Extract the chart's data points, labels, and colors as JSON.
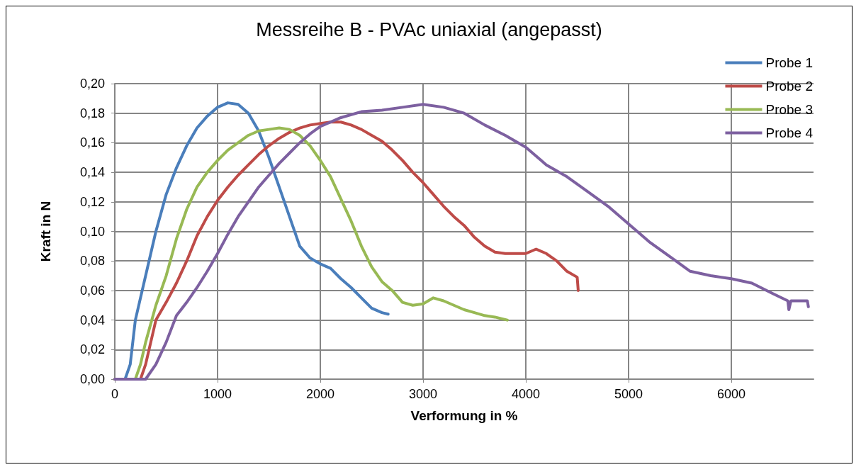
{
  "chart_data": {
    "type": "line",
    "title": "Messreihe B - PVAc uniaxial (angepasst)",
    "xlabel": "Verformung in %",
    "ylabel": "Kraft in N",
    "xlim": [
      0,
      6800
    ],
    "xticks": [
      0,
      1000,
      2000,
      3000,
      4000,
      5000,
      6000
    ],
    "ylim": [
      0,
      0.2
    ],
    "yticks": [
      {
        "value": 0,
        "label": "0,00"
      },
      {
        "value": 0.02,
        "label": "0,02"
      },
      {
        "value": 0.04,
        "label": "0,04"
      },
      {
        "value": 0.06,
        "label": "0,06"
      },
      {
        "value": 0.08,
        "label": "0,08"
      },
      {
        "value": 0.1,
        "label": "0,10"
      },
      {
        "value": 0.12,
        "label": "0,12"
      },
      {
        "value": 0.14,
        "label": "0,14"
      },
      {
        "value": 0.16,
        "label": "0,16"
      },
      {
        "value": 0.18,
        "label": "0,18"
      },
      {
        "value": 0.2,
        "label": "0,20"
      }
    ],
    "grid": true,
    "legend": "top right",
    "marker": "none",
    "line_style": "solid",
    "series": [
      {
        "name": "Probe 1",
        "color": "#4a7ebb",
        "x": [
          0,
          100,
          150,
          200,
          300,
          400,
          500,
          600,
          700,
          800,
          900,
          1000,
          1100,
          1200,
          1300,
          1400,
          1500,
          1600,
          1700,
          1800,
          1900,
          2000,
          2100,
          2200,
          2300,
          2400,
          2500,
          2600,
          2660
        ],
        "values": [
          0,
          0,
          0.01,
          0.04,
          0.07,
          0.1,
          0.125,
          0.143,
          0.158,
          0.17,
          0.178,
          0.184,
          0.187,
          0.186,
          0.18,
          0.168,
          0.15,
          0.13,
          0.11,
          0.09,
          0.082,
          0.078,
          0.075,
          0.068,
          0.062,
          0.055,
          0.048,
          0.045,
          0.044
        ]
      },
      {
        "name": "Probe 2",
        "color": "#be4b48",
        "x": [
          0,
          250,
          300,
          350,
          400,
          500,
          600,
          700,
          800,
          900,
          1000,
          1100,
          1200,
          1300,
          1400,
          1500,
          1600,
          1700,
          1800,
          1900,
          2000,
          2100,
          2200,
          2300,
          2400,
          2500,
          2600,
          2700,
          2800,
          2900,
          3000,
          3100,
          3200,
          3300,
          3400,
          3500,
          3600,
          3700,
          3800,
          3900,
          4000,
          4100,
          4200,
          4300,
          4400,
          4500,
          4510
        ],
        "values": [
          0,
          0,
          0.01,
          0.025,
          0.04,
          0.052,
          0.065,
          0.08,
          0.097,
          0.11,
          0.121,
          0.13,
          0.138,
          0.145,
          0.152,
          0.158,
          0.163,
          0.167,
          0.17,
          0.172,
          0.173,
          0.174,
          0.174,
          0.172,
          0.169,
          0.165,
          0.161,
          0.155,
          0.148,
          0.14,
          0.133,
          0.125,
          0.117,
          0.11,
          0.104,
          0.096,
          0.09,
          0.086,
          0.085,
          0.085,
          0.085,
          0.088,
          0.085,
          0.08,
          0.073,
          0.069,
          0.06
        ]
      },
      {
        "name": "Probe 3",
        "color": "#98b954",
        "x": [
          0,
          200,
          250,
          300,
          400,
          500,
          600,
          700,
          800,
          900,
          1000,
          1100,
          1200,
          1300,
          1400,
          1500,
          1600,
          1700,
          1800,
          1900,
          2000,
          2100,
          2200,
          2300,
          2400,
          2500,
          2600,
          2700,
          2800,
          2900,
          3000,
          3100,
          3200,
          3300,
          3400,
          3500,
          3600,
          3700,
          3820
        ],
        "values": [
          0,
          0,
          0.01,
          0.025,
          0.05,
          0.07,
          0.095,
          0.115,
          0.13,
          0.14,
          0.148,
          0.155,
          0.16,
          0.165,
          0.168,
          0.169,
          0.17,
          0.169,
          0.165,
          0.158,
          0.148,
          0.137,
          0.122,
          0.107,
          0.09,
          0.076,
          0.066,
          0.06,
          0.052,
          0.05,
          0.051,
          0.055,
          0.053,
          0.05,
          0.047,
          0.045,
          0.043,
          0.042,
          0.04
        ]
      },
      {
        "name": "Probe 4",
        "color": "#7d60a0",
        "x": [
          0,
          300,
          400,
          500,
          600,
          700,
          800,
          900,
          1000,
          1100,
          1200,
          1300,
          1400,
          1500,
          1600,
          1700,
          1800,
          1900,
          2000,
          2200,
          2400,
          2600,
          2800,
          3000,
          3200,
          3400,
          3600,
          3800,
          4000,
          4200,
          4400,
          4600,
          4800,
          5000,
          5200,
          5400,
          5600,
          5800,
          6000,
          6200,
          6400,
          6550,
          6560,
          6580,
          6740,
          6750
        ],
        "values": [
          0,
          0,
          0.01,
          0.025,
          0.043,
          0.052,
          0.062,
          0.073,
          0.085,
          0.098,
          0.11,
          0.12,
          0.13,
          0.138,
          0.146,
          0.153,
          0.16,
          0.166,
          0.171,
          0.177,
          0.181,
          0.182,
          0.184,
          0.186,
          0.184,
          0.18,
          0.172,
          0.165,
          0.157,
          0.145,
          0.137,
          0.127,
          0.117,
          0.105,
          0.093,
          0.083,
          0.073,
          0.07,
          0.068,
          0.065,
          0.058,
          0.053,
          0.047,
          0.053,
          0.053,
          0.049
        ]
      }
    ]
  }
}
